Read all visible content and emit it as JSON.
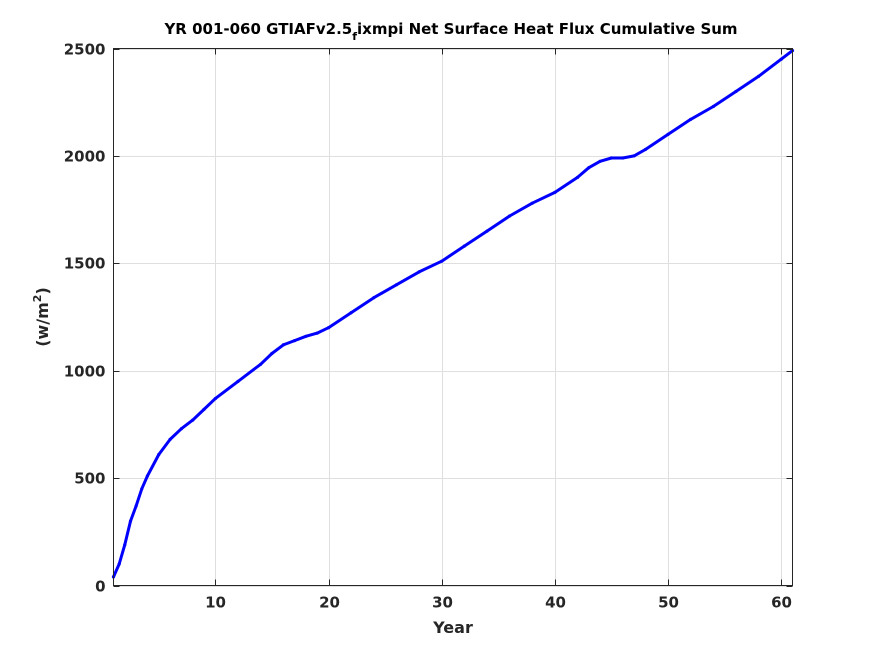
{
  "chart_data": {
    "type": "line",
    "title_parts": {
      "before_sub": "YR 001-060 GTIAFv2.5",
      "sub": "f",
      "after_sub": "ixmpi Net Surface Heat Flux  Cumulative Sum"
    },
    "xlabel": "Year",
    "ylabel_parts": {
      "base": "(w/m",
      "sup": "2",
      "close": ")"
    },
    "xlim": [
      1,
      61
    ],
    "ylim": [
      0,
      2500
    ],
    "xticks": [
      10,
      20,
      30,
      40,
      50,
      60
    ],
    "yticks": [
      0,
      500,
      1000,
      1500,
      2000,
      2500
    ],
    "grid": true,
    "series": [
      {
        "color": "#0000ff",
        "x": [
          1.0,
          1.5,
          2.0,
          2.5,
          3.0,
          3.5,
          4.0,
          5.0,
          6.0,
          7.0,
          8.0,
          9.0,
          10.0,
          12.0,
          14.0,
          15.0,
          16.0,
          17.0,
          18.0,
          19.0,
          20.0,
          22.0,
          24.0,
          26.0,
          28.0,
          30.0,
          32.0,
          34.0,
          36.0,
          38.0,
          40.0,
          42.0,
          43.0,
          44.0,
          45.0,
          46.0,
          47.0,
          48.0,
          50.0,
          52.0,
          54.0,
          56.0,
          58.0,
          60.0,
          61.0
        ],
        "y": [
          40,
          100,
          190,
          300,
          370,
          450,
          510,
          610,
          680,
          730,
          770,
          820,
          870,
          950,
          1030,
          1080,
          1120,
          1140,
          1160,
          1175,
          1200,
          1270,
          1340,
          1400,
          1460,
          1510,
          1580,
          1650,
          1720,
          1780,
          1830,
          1900,
          1945,
          1975,
          1990,
          1990,
          2000,
          2030,
          2100,
          2170,
          2230,
          2300,
          2370,
          2450,
          2490
        ]
      }
    ]
  }
}
